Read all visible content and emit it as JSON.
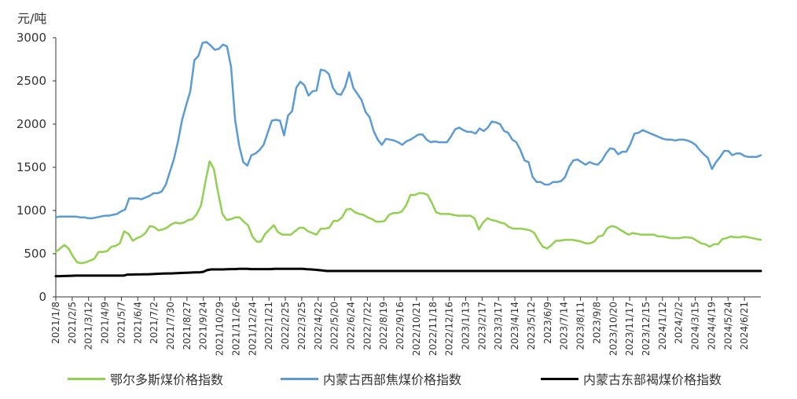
{
  "chart_data": {
    "type": "line",
    "y_unit": "元/吨",
    "ylim": [
      0,
      3000
    ],
    "yticks": [
      0,
      500,
      1000,
      1500,
      2000,
      2500,
      3000
    ],
    "grid": false,
    "legend_position": "bottom",
    "x_tick_labels": [
      "2021/1/8",
      "2021/2/5",
      "2021/3/12",
      "2021/4/9",
      "2021/5/7",
      "2021/6/4",
      "2021/7/2",
      "2021/7/30",
      "2021/8/27",
      "2021/9/24",
      "2021/10/29",
      "2021/11/26",
      "2021/12/24",
      "2022/1/21",
      "2022/2/25",
      "2022/3/25",
      "2022/4/22",
      "2022/5/20",
      "2022/6/24",
      "2022/7/22",
      "2022/8/19",
      "2022/9/16",
      "2022/10/21",
      "2022/11/18",
      "2022/12/16",
      "2023/1/13",
      "2023/2/17",
      "2023/3/17",
      "2023/4/14",
      "2023/5/12",
      "2023/6/9",
      "2023/7/14",
      "2023/8/11",
      "2023/9/8",
      "2023/10/20",
      "2023/11/17",
      "2023/12/15",
      "2024/1/12",
      "2024/2/2",
      "2024/3/15",
      "2024/4/19",
      "2024/5/24",
      "2024/6/21"
    ],
    "series": [
      {
        "name": "鄂尔多斯煤价格指数",
        "color": "#92d050",
        "values": [
          520,
          560,
          600,
          560,
          470,
          400,
          390,
          400,
          420,
          440,
          520,
          520,
          530,
          580,
          590,
          620,
          760,
          730,
          650,
          680,
          700,
          740,
          820,
          810,
          770,
          780,
          800,
          840,
          860,
          850,
          860,
          890,
          900,
          960,
          1060,
          1330,
          1570,
          1480,
          1200,
          960,
          890,
          900,
          920,
          920,
          870,
          830,
          700,
          640,
          640,
          730,
          780,
          830,
          750,
          720,
          720,
          720,
          760,
          800,
          800,
          760,
          740,
          720,
          790,
          790,
          800,
          880,
          880,
          920,
          1010,
          1020,
          980,
          960,
          950,
          920,
          900,
          870,
          870,
          880,
          950,
          970,
          970,
          990,
          1060,
          1180,
          1180,
          1200,
          1200,
          1180,
          1090,
          980,
          960,
          960,
          960,
          950,
          940,
          940,
          940,
          940,
          910,
          780,
          860,
          910,
          890,
          880,
          860,
          850,
          810,
          790,
          790,
          790,
          780,
          770,
          740,
          650,
          580,
          560,
          600,
          650,
          650,
          660,
          660,
          660,
          650,
          640,
          620,
          620,
          640,
          700,
          710,
          790,
          820,
          810,
          780,
          750,
          720,
          740,
          730,
          720,
          720,
          720,
          720,
          700,
          700,
          690,
          680,
          680,
          680,
          690,
          690,
          680,
          650,
          620,
          610,
          580,
          610,
          610,
          670,
          680,
          700,
          690,
          690,
          700,
          690,
          680,
          670,
          660
        ]
      },
      {
        "name": "内蒙古西部焦煤价格指数",
        "color": "#5b9bd5",
        "values": [
          920,
          930,
          930,
          930,
          930,
          930,
          920,
          920,
          910,
          910,
          920,
          930,
          940,
          940,
          950,
          960,
          990,
          1010,
          1140,
          1140,
          1140,
          1130,
          1150,
          1170,
          1200,
          1200,
          1220,
          1300,
          1450,
          1600,
          1800,
          2050,
          2220,
          2380,
          2740,
          2790,
          2940,
          2950,
          2910,
          2860,
          2870,
          2920,
          2900,
          2660,
          2050,
          1750,
          1560,
          1520,
          1640,
          1660,
          1700,
          1760,
          1900,
          2040,
          2050,
          2040,
          1870,
          2100,
          2150,
          2420,
          2490,
          2450,
          2330,
          2380,
          2390,
          2630,
          2620,
          2580,
          2420,
          2350,
          2340,
          2430,
          2600,
          2420,
          2350,
          2280,
          2140,
          2080,
          1920,
          1820,
          1760,
          1830,
          1820,
          1810,
          1790,
          1760,
          1800,
          1820,
          1850,
          1880,
          1880,
          1820,
          1790,
          1800,
          1790,
          1790,
          1790,
          1860,
          1940,
          1960,
          1930,
          1910,
          1910,
          1890,
          1950,
          1920,
          1960,
          2030,
          2020,
          2000,
          1920,
          1900,
          1820,
          1790,
          1700,
          1580,
          1560,
          1390,
          1330,
          1330,
          1300,
          1300,
          1330,
          1330,
          1340,
          1390,
          1510,
          1580,
          1590,
          1560,
          1530,
          1560,
          1540,
          1530,
          1580,
          1660,
          1720,
          1710,
          1650,
          1680,
          1680,
          1770,
          1890,
          1900,
          1930,
          1910,
          1890,
          1870,
          1850,
          1830,
          1820,
          1820,
          1810,
          1820,
          1820,
          1810,
          1790,
          1760,
          1700,
          1650,
          1610,
          1480,
          1560,
          1620,
          1690,
          1690,
          1640,
          1660,
          1660,
          1630,
          1620,
          1620,
          1620,
          1640
        ]
      },
      {
        "name": "内蒙古东部褐煤价格指数",
        "color": "#000000",
        "values": [
          240,
          240,
          242,
          244,
          245,
          246,
          246,
          246,
          246,
          246,
          246,
          246,
          246,
          246,
          246,
          246,
          246,
          246,
          258,
          258,
          260,
          260,
          262,
          262,
          264,
          266,
          268,
          270,
          272,
          272,
          274,
          276,
          278,
          280,
          282,
          284,
          284,
          290,
          310,
          318,
          318,
          318,
          318,
          320,
          322,
          322,
          325,
          325,
          325,
          322,
          322,
          322,
          322,
          322,
          322,
          325,
          325,
          325,
          325,
          325,
          325,
          325,
          325,
          320,
          318,
          315,
          310,
          305,
          300,
          300,
          300,
          300,
          300,
          300,
          300,
          300,
          300,
          300,
          300,
          300,
          300,
          300,
          300,
          300,
          300,
          300,
          300,
          300,
          300,
          300,
          300,
          300,
          300,
          300,
          300,
          300,
          300,
          300,
          300,
          300,
          300,
          300,
          300,
          300,
          300,
          300,
          300,
          300,
          300,
          300,
          300,
          300,
          300,
          300,
          300,
          300,
          300,
          300,
          300,
          300,
          300,
          300,
          300,
          300,
          300,
          300,
          300,
          300,
          300,
          300,
          300,
          300,
          300,
          300,
          300,
          300,
          300,
          300,
          300,
          300,
          300,
          300,
          300,
          300,
          300,
          300,
          300,
          300,
          300,
          300,
          300,
          300,
          300,
          300,
          300,
          300,
          300,
          300,
          300,
          300,
          300,
          300,
          300,
          300,
          300,
          300,
          300,
          300,
          300,
          300,
          300,
          300,
          300,
          300,
          300,
          300,
          300,
          300
        ]
      }
    ]
  }
}
